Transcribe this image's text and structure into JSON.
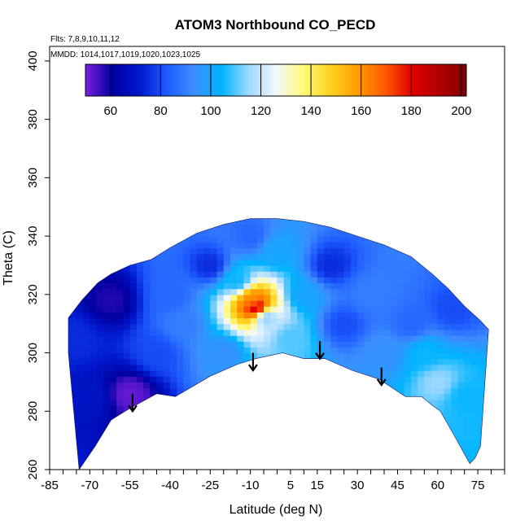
{
  "chart_data": {
    "type": "heatmap",
    "title": "ATOM3 Northbound CO_PECD",
    "annotations": [
      "Flts: 7,8,9,10,11,12",
      "MMDD: 1014,1017,1019,1020,1023,1025"
    ],
    "xlabel": "Latitude (deg N)",
    "ylabel": "Theta (C)",
    "xlim": [
      -85,
      85
    ],
    "ylim": [
      260,
      405
    ],
    "x_tick_labels": [
      "-85",
      "-70",
      "-55",
      "-40",
      "-25",
      "-10",
      "5",
      "15",
      "30",
      "45",
      "60",
      "75"
    ],
    "y_tick_labels": [
      "260",
      "280",
      "300",
      "320",
      "340",
      "360",
      "380",
      "400"
    ],
    "colorbar": {
      "range": [
        50,
        202
      ],
      "tick_labels": [
        "60",
        "80",
        "100",
        "120",
        "140",
        "160",
        "180",
        "200"
      ],
      "colors": [
        "#7a1fe0",
        "#0000a0",
        "#0018cc",
        "#1e5cff",
        "#3d8dff",
        "#00b4ff",
        "#9cd8ff",
        "#f2f8ff",
        "#fffa7a",
        "#ffd21e",
        "#ff9d00",
        "#ff5a00",
        "#e00000",
        "#b00000",
        "#800000"
      ]
    },
    "outline": {
      "top": [
        [
          -78,
          312
        ],
        [
          -73,
          318
        ],
        [
          -67,
          324
        ],
        [
          -62,
          327
        ],
        [
          -55,
          330
        ],
        [
          -47,
          332
        ],
        [
          -40,
          336
        ],
        [
          -30,
          341
        ],
        [
          -20,
          344
        ],
        [
          -10,
          346
        ],
        [
          0,
          346
        ],
        [
          10,
          345
        ],
        [
          20,
          343
        ],
        [
          30,
          340
        ],
        [
          40,
          337
        ],
        [
          50,
          333
        ],
        [
          58,
          327
        ],
        [
          64,
          322
        ],
        [
          70,
          316
        ],
        [
          76,
          311
        ],
        [
          79,
          308
        ]
      ],
      "bottom": [
        [
          -74,
          260
        ],
        [
          -68,
          268
        ],
        [
          -62,
          277
        ],
        [
          -55,
          281
        ],
        [
          -45,
          286
        ],
        [
          -38,
          285
        ],
        [
          -25,
          292
        ],
        [
          -15,
          296
        ],
        [
          -8,
          298
        ],
        [
          2,
          300
        ],
        [
          10,
          298
        ],
        [
          18,
          298
        ],
        [
          28,
          294
        ],
        [
          38,
          291
        ],
        [
          48,
          285
        ],
        [
          54,
          285
        ],
        [
          58,
          282
        ],
        [
          61,
          280
        ],
        [
          66,
          272
        ],
        [
          72,
          262
        ]
      ],
      "left_edge": [
        [
          -74,
          260
        ],
        [
          -76,
          280
        ],
        [
          -78,
          300
        ],
        [
          -78,
          312
        ]
      ],
      "right_edge": [
        [
          72,
          262
        ],
        [
          74,
          264
        ],
        [
          76,
          268
        ],
        [
          79,
          308
        ]
      ]
    },
    "value_anchors": [
      {
        "lat": -75,
        "theta": 305,
        "value": 75
      },
      {
        "lat": -70,
        "theta": 285,
        "value": 70
      },
      {
        "lat": -62,
        "theta": 318,
        "value": 58
      },
      {
        "lat": -55,
        "theta": 286,
        "value": 52
      },
      {
        "lat": -45,
        "theta": 300,
        "value": 80
      },
      {
        "lat": -40,
        "theta": 320,
        "value": 85
      },
      {
        "lat": -35,
        "theta": 310,
        "value": 90
      },
      {
        "lat": -20,
        "theta": 300,
        "value": 95
      },
      {
        "lat": -25,
        "theta": 330,
        "value": 75
      },
      {
        "lat": -15,
        "theta": 325,
        "value": 105
      },
      {
        "lat": -9,
        "theta": 318,
        "value": 160
      },
      {
        "lat": -8,
        "theta": 316,
        "value": 185
      },
      {
        "lat": -4,
        "theta": 312,
        "value": 115
      },
      {
        "lat": -10,
        "theta": 340,
        "value": 85
      },
      {
        "lat": 0,
        "theta": 335,
        "value": 100
      },
      {
        "lat": 5,
        "theta": 305,
        "value": 110
      },
      {
        "lat": 10,
        "theta": 320,
        "value": 100
      },
      {
        "lat": 20,
        "theta": 330,
        "value": 75
      },
      {
        "lat": 25,
        "theta": 310,
        "value": 80
      },
      {
        "lat": 35,
        "theta": 320,
        "value": 90
      },
      {
        "lat": 40,
        "theta": 300,
        "value": 95
      },
      {
        "lat": 50,
        "theta": 310,
        "value": 85
      },
      {
        "lat": 55,
        "theta": 300,
        "value": 105
      },
      {
        "lat": 60,
        "theta": 290,
        "value": 115
      },
      {
        "lat": 70,
        "theta": 285,
        "value": 105
      },
      {
        "lat": 65,
        "theta": 315,
        "value": 80
      }
    ],
    "arrows": [
      {
        "lat": -54,
        "theta_top": 286,
        "theta_tip": 280
      },
      {
        "lat": -9,
        "theta_top": 300,
        "theta_tip": 294
      },
      {
        "lat": 16,
        "theta_top": 304,
        "theta_tip": 298
      },
      {
        "lat": 39,
        "theta_top": 295,
        "theta_tip": 289
      }
    ]
  }
}
